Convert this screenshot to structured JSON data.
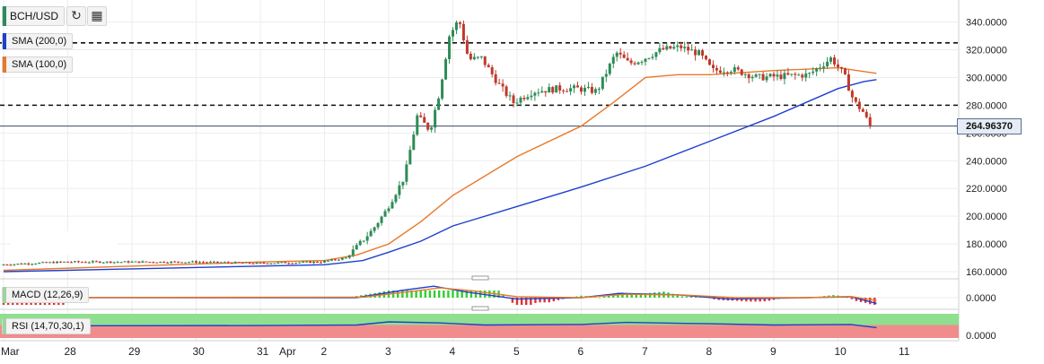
{
  "toolbar": {
    "symbol": "BCH/USD",
    "symbol_color": "#2a8c5c",
    "sma200_label": "SMA (200,0)",
    "sma200_color": "#1f3fcf",
    "sma100_label": "SMA (100,0)",
    "sma100_color": "#e8792a",
    "refresh_icon": "refresh-icon",
    "calendar_icon": "calendar-icon"
  },
  "price_label": "264.96370",
  "macd_label": "MACD (12,26,9)",
  "rsi_label": "RSI (14,70,30,1)",
  "chart_data": [
    {
      "type": "candlestick",
      "title": "BCH/USD",
      "ylim": [
        160,
        352
      ],
      "yticks": [
        "160.0000",
        "180.0000",
        "200.0000",
        "220.0000",
        "240.0000",
        "260.0000",
        "280.0000",
        "300.0000",
        "320.0000",
        "340.0000"
      ],
      "xticks": [
        "Mar",
        "28",
        "29",
        "30",
        "31",
        "Apr",
        "2",
        "3",
        "4",
        "5",
        "6",
        "7",
        "8",
        "9",
        "10",
        "11"
      ],
      "colors": {
        "up": "#2e8b57",
        "down": "#c0392b",
        "sma200": "#1f3fcf",
        "sma100": "#e8792a"
      },
      "horizontal_levels": [
        325,
        280
      ],
      "last_price": 264.9637,
      "sma200": [
        [
          27.0,
          160
        ],
        [
          29.0,
          162
        ],
        [
          31.0,
          164
        ],
        [
          32.0,
          165
        ],
        [
          32.6,
          168
        ],
        [
          33.0,
          174
        ],
        [
          33.5,
          182
        ],
        [
          34.0,
          193
        ],
        [
          35.0,
          207
        ],
        [
          36.0,
          221
        ],
        [
          37.0,
          236
        ],
        [
          38.0,
          254
        ],
        [
          39.0,
          272
        ],
        [
          39.5,
          282
        ],
        [
          40.0,
          292
        ],
        [
          40.4,
          297
        ],
        [
          40.6,
          298.5
        ]
      ],
      "sma100": [
        [
          27.0,
          161
        ],
        [
          29.0,
          164
        ],
        [
          31.0,
          167
        ],
        [
          32.0,
          168
        ],
        [
          32.5,
          172
        ],
        [
          33.0,
          180
        ],
        [
          33.5,
          196
        ],
        [
          34.0,
          215
        ],
        [
          35.0,
          243
        ],
        [
          36.0,
          265
        ],
        [
          36.5,
          282
        ],
        [
          37.0,
          300
        ],
        [
          37.5,
          302
        ],
        [
          38.0,
          302
        ],
        [
          39.0,
          305
        ],
        [
          40.0,
          307
        ],
        [
          40.6,
          303
        ]
      ],
      "price_path": [
        [
          27.0,
          165
        ],
        [
          28.0,
          167
        ],
        [
          29.0,
          167
        ],
        [
          30.0,
          167
        ],
        [
          31.0,
          166
        ],
        [
          32.0,
          167
        ],
        [
          32.4,
          170
        ],
        [
          32.8,
          190
        ],
        [
          33.0,
          203
        ],
        [
          33.3,
          228
        ],
        [
          33.5,
          272
        ],
        [
          33.7,
          262
        ],
        [
          33.85,
          290
        ],
        [
          34.0,
          330
        ],
        [
          34.15,
          342
        ],
        [
          34.3,
          313
        ],
        [
          34.5,
          314
        ],
        [
          34.8,
          293
        ],
        [
          35.0,
          282
        ],
        [
          35.3,
          290
        ],
        [
          35.7,
          292
        ],
        [
          36.0,
          292
        ],
        [
          36.3,
          290
        ],
        [
          36.6,
          318
        ],
        [
          36.8,
          310
        ],
        [
          37.0,
          313
        ],
        [
          37.3,
          320
        ],
        [
          37.6,
          322
        ],
        [
          37.9,
          317
        ],
        [
          38.1,
          305
        ],
        [
          38.4,
          306
        ],
        [
          38.8,
          300
        ],
        [
          39.2,
          301
        ],
        [
          39.6,
          302
        ],
        [
          39.95,
          314
        ],
        [
          40.15,
          302
        ],
        [
          40.3,
          283
        ],
        [
          40.45,
          275
        ],
        [
          40.55,
          265
        ]
      ]
    },
    {
      "type": "line",
      "title": "MACD (12,26,9)",
      "yticks": [
        "0.0000"
      ],
      "series": [
        {
          "color": "#1f3fcf",
          "values": [
            [
              27,
              0
            ],
            [
              32.5,
              0
            ],
            [
              33.2,
              2.5
            ],
            [
              33.7,
              4
            ],
            [
              34.2,
              2
            ],
            [
              35,
              -0.5
            ],
            [
              36,
              0
            ],
            [
              36.6,
              1.5
            ],
            [
              37.5,
              1
            ],
            [
              38.3,
              -0.5
            ],
            [
              39.5,
              0
            ],
            [
              40.2,
              0.3
            ],
            [
              40.6,
              -2
            ]
          ]
        },
        {
          "color": "#e8792a",
          "values": [
            [
              27,
              0
            ],
            [
              32.6,
              0.2
            ],
            [
              33.3,
              2
            ],
            [
              33.8,
              3.4
            ],
            [
              34.3,
              2.4
            ],
            [
              35,
              0.3
            ],
            [
              36,
              0
            ],
            [
              36.7,
              1.2
            ],
            [
              37.6,
              0.9
            ],
            [
              38.4,
              0
            ],
            [
              39.5,
              0
            ],
            [
              40.2,
              0.4
            ],
            [
              40.6,
              -1
            ]
          ]
        }
      ]
    },
    {
      "type": "line",
      "title": "RSI (14,70,30,1)",
      "yticks": [
        "0.0000"
      ],
      "bands": {
        "overbought_color": "#8ee08e",
        "oversold_color": "#f08c8c"
      },
      "series": [
        {
          "color": "#1f3fcf",
          "values": [
            [
              27,
              47
            ],
            [
              31,
              48
            ],
            [
              32.5,
              50
            ],
            [
              33,
              62
            ],
            [
              33.8,
              58
            ],
            [
              34.5,
              50
            ],
            [
              36,
              52
            ],
            [
              36.7,
              60
            ],
            [
              38,
              55
            ],
            [
              39,
              50
            ],
            [
              40.2,
              52
            ],
            [
              40.6,
              40
            ]
          ]
        }
      ]
    }
  ]
}
